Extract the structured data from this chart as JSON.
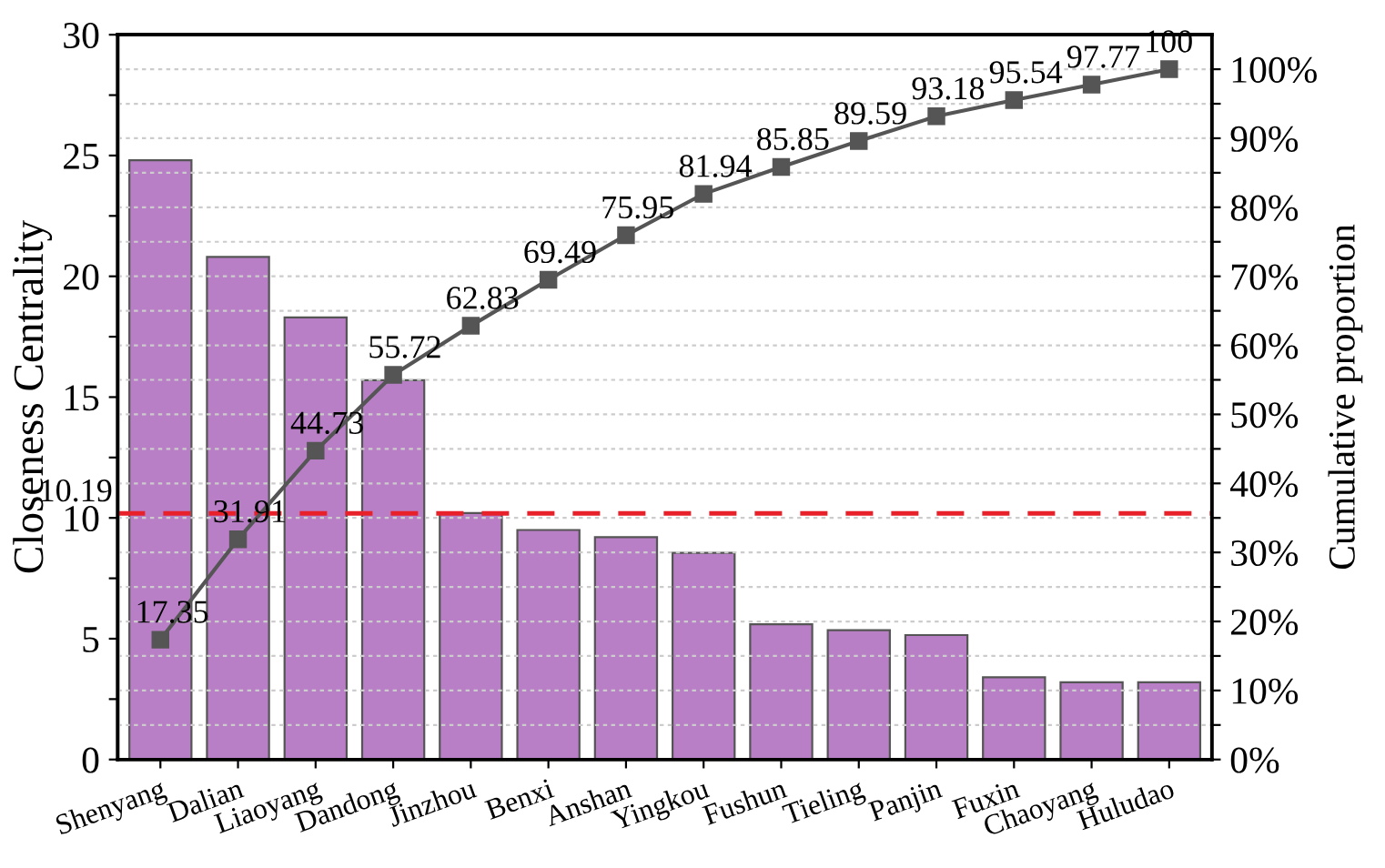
{
  "chart_data": {
    "type": "bar",
    "xlabel": null,
    "ylabel": "Closeness Centrality",
    "y2label": "Cumulative proportion",
    "categories": [
      "Shenyang",
      "Dalian",
      "Liaoyang",
      "Dandong",
      "Jinzhou",
      "Benxi",
      "Anshan",
      "Yingkou",
      "Fushun",
      "Tieling",
      "Panjin",
      "Fuxin",
      "Chaoyang",
      "Huludao"
    ],
    "series": [
      {
        "color": "#b87fc6",
        "values": [
          24.8,
          20.8,
          18.3,
          15.7,
          10.2,
          9.5,
          9.2,
          8.55,
          5.6,
          5.35,
          5.15,
          3.4,
          3.2,
          3.2
        ]
      },
      {
        "type": "line",
        "axis": "y2",
        "color": "#555555",
        "marker": "square",
        "line_style": "solid",
        "values": [
          17.35,
          31.91,
          44.73,
          55.72,
          62.83,
          69.49,
          75.95,
          81.94,
          85.85,
          89.59,
          93.18,
          95.54,
          97.77,
          100
        ],
        "value_labels": [
          "17.35",
          "31.91",
          "44.73",
          "55.72",
          "62.83",
          "69.49",
          "75.95",
          "81.94",
          "85.85",
          "89.59",
          "93.18",
          "95.54",
          "97.77",
          "100"
        ]
      }
    ],
    "ylim": [
      0,
      30
    ],
    "yticks": [
      0,
      {
        "value": 2.5,
        "label": null
      },
      5,
      {
        "value": 7.5,
        "label": null
      },
      10,
      {
        "value": 12.5,
        "label": null
      },
      15,
      {
        "value": 17.5,
        "label": null
      },
      20,
      {
        "value": 22.5,
        "label": null
      },
      25,
      {
        "value": 27.5,
        "label": null
      },
      30
    ],
    "y2lim": [
      0,
      105
    ],
    "y2ticks": [
      {
        "value": 0,
        "label": "0%"
      },
      {
        "value": 5,
        "label": null
      },
      {
        "value": 10,
        "label": "10%"
      },
      {
        "value": 15,
        "label": null
      },
      {
        "value": 20,
        "label": "20%"
      },
      {
        "value": 25,
        "label": null
      },
      {
        "value": 30,
        "label": "30%"
      },
      {
        "value": 35,
        "label": null
      },
      {
        "value": 40,
        "label": "40%"
      },
      {
        "value": 45,
        "label": null
      },
      {
        "value": 50,
        "label": "50%"
      },
      {
        "value": 55,
        "label": null
      },
      {
        "value": 60,
        "label": "60%"
      },
      {
        "value": 65,
        "label": null
      },
      {
        "value": 70,
        "label": "70%"
      },
      {
        "value": 75,
        "label": null
      },
      {
        "value": 80,
        "label": "80%"
      },
      {
        "value": 85,
        "label": null
      },
      {
        "value": 90,
        "label": "90%"
      },
      {
        "value": 95,
        "label": null
      },
      {
        "value": 100,
        "label": "100%"
      }
    ],
    "ref_lines": [
      {
        "axis": "y",
        "value": 10.19,
        "label": "10.19",
        "color": "#e8202a",
        "line_style": "dashed"
      }
    ],
    "grid": "y2",
    "legend": false
  }
}
